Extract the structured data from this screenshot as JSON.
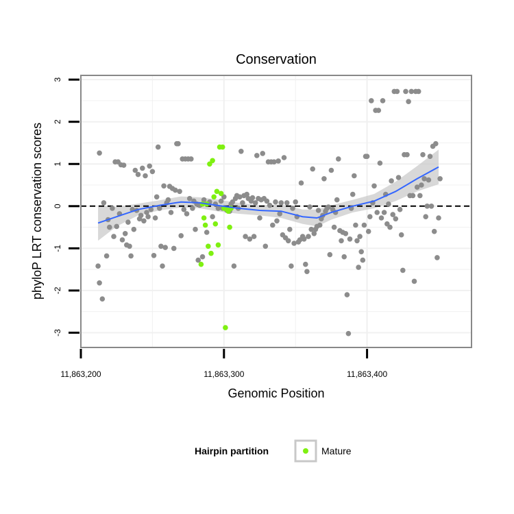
{
  "chart_data": {
    "type": "scatter",
    "title": "Conservation",
    "xlabel": "Genomic Position",
    "ylabel": "phyloP LRT conservation scores",
    "xlim": [
      11863200,
      11863473
    ],
    "ylim": [
      -3.35,
      3.1
    ],
    "x_ticks": [
      11863200,
      11863300,
      11863400
    ],
    "x_tick_labels": [
      "11,863,200",
      "11,863,300",
      "11,863,400"
    ],
    "y_ticks": [
      -3,
      -2,
      -1,
      0,
      1,
      2,
      3
    ],
    "y_tick_labels": [
      "-3",
      "-2",
      "-1",
      "0",
      "1",
      "2",
      "3"
    ],
    "grid": true,
    "reference_line": {
      "y": 0,
      "style": "dashed",
      "color": "#000000"
    },
    "legend": {
      "title": "Hairpin partition",
      "position": "bottom",
      "entries": [
        {
          "label": "Mature",
          "color": "#7ff011"
        }
      ]
    },
    "colors": {
      "other": "#8c8c8c",
      "mature": "#7ff011",
      "smooth": "#3366ff",
      "band": "#c8c8c8",
      "panel_border": "#888888",
      "grid": "#f0f0f0"
    },
    "series": [
      {
        "name": "Other",
        "points": [
          [
            11863212,
            -1.42
          ],
          [
            11863213,
            -1.82
          ],
          [
            11863213,
            1.26
          ],
          [
            11863215,
            -2.2
          ],
          [
            11863216,
            0.08
          ],
          [
            11863218,
            -1.18
          ],
          [
            11863219,
            -0.32
          ],
          [
            11863220,
            -0.5
          ],
          [
            11863222,
            -0.05
          ],
          [
            11863223,
            -0.72
          ],
          [
            11863224,
            1.05
          ],
          [
            11863225,
            -0.48
          ],
          [
            11863226,
            1.05
          ],
          [
            11863227,
            -0.18
          ],
          [
            11863228,
            0.98
          ],
          [
            11863229,
            -0.8
          ],
          [
            11863230,
            0.97
          ],
          [
            11863231,
            -0.65
          ],
          [
            11863232,
            -0.92
          ],
          [
            11863233,
            -0.38
          ],
          [
            11863234,
            -0.95
          ],
          [
            11863235,
            -1.18
          ],
          [
            11863236,
            -0.08
          ],
          [
            11863237,
            -0.55
          ],
          [
            11863238,
            0.85
          ],
          [
            11863239,
            -0.1
          ],
          [
            11863240,
            0.75
          ],
          [
            11863241,
            -0.3
          ],
          [
            11863242,
            -0.22
          ],
          [
            11863243,
            0.9
          ],
          [
            11863244,
            -0.35
          ],
          [
            11863245,
            0.72
          ],
          [
            11863246,
            -0.15
          ],
          [
            11863247,
            -0.25
          ],
          [
            11863248,
            0.95
          ],
          [
            11863249,
            -0.08
          ],
          [
            11863250,
            0.82
          ],
          [
            11863251,
            -1.17
          ],
          [
            11863252,
            -0.28
          ],
          [
            11863253,
            0.22
          ],
          [
            11863254,
            1.4
          ],
          [
            11863255,
            -0.05
          ],
          [
            11863256,
            -0.95
          ],
          [
            11863257,
            -1.42
          ],
          [
            11863258,
            0.48
          ],
          [
            11863259,
            -0.98
          ],
          [
            11863260,
            0.08
          ],
          [
            11863261,
            0.15
          ],
          [
            11863262,
            0.47
          ],
          [
            11863263,
            -0.15
          ],
          [
            11863264,
            0.42
          ],
          [
            11863265,
            -1.0
          ],
          [
            11863266,
            0.38
          ],
          [
            11863267,
            1.48
          ],
          [
            11863268,
            1.48
          ],
          [
            11863269,
            0.35
          ],
          [
            11863270,
            -0.7
          ],
          [
            11863271,
            1.12
          ],
          [
            11863272,
            -0.08
          ],
          [
            11863273,
            1.12
          ],
          [
            11863274,
            -0.18
          ],
          [
            11863275,
            1.12
          ],
          [
            11863276,
            0.18
          ],
          [
            11863277,
            1.12
          ],
          [
            11863278,
            -0.05
          ],
          [
            11863279,
            0.12
          ],
          [
            11863280,
            -0.55
          ],
          [
            11863281,
            0.05
          ],
          [
            11863282,
            -1.28
          ],
          [
            11863283,
            0.02
          ],
          [
            11863285,
            -1.2
          ],
          [
            11863286,
            0.15
          ],
          [
            11863288,
            -0.62
          ],
          [
            11863290,
            0.1
          ],
          [
            11863292,
            -0.25
          ],
          [
            11863294,
            0.05
          ],
          [
            11863296,
            -0.05
          ],
          [
            11863298,
            0.12
          ],
          [
            11863299,
            -0.05
          ],
          [
            11863300,
            0.22
          ],
          [
            11863302,
            -0.1
          ],
          [
            11863304,
            -0.12
          ],
          [
            11863305,
            0.05
          ],
          [
            11863306,
            0.1
          ],
          [
            11863307,
            -1.42
          ],
          [
            11863308,
            0.18
          ],
          [
            11863309,
            0.25
          ],
          [
            11863310,
            -0.05
          ],
          [
            11863311,
            0.22
          ],
          [
            11863312,
            1.3
          ],
          [
            11863313,
            0.08
          ],
          [
            11863314,
            0.25
          ],
          [
            11863315,
            -0.72
          ],
          [
            11863316,
            0.28
          ],
          [
            11863317,
            0.18
          ],
          [
            11863318,
            -0.78
          ],
          [
            11863319,
            0.12
          ],
          [
            11863320,
            0.2
          ],
          [
            11863321,
            -0.72
          ],
          [
            11863322,
            0.08
          ],
          [
            11863323,
            1.2
          ],
          [
            11863324,
            0.18
          ],
          [
            11863325,
            -0.28
          ],
          [
            11863326,
            0.15
          ],
          [
            11863327,
            1.25
          ],
          [
            11863328,
            0.18
          ],
          [
            11863329,
            -0.95
          ],
          [
            11863330,
            0.12
          ],
          [
            11863331,
            1.05
          ],
          [
            11863332,
            0.02
          ],
          [
            11863333,
            1.05
          ],
          [
            11863334,
            -0.45
          ],
          [
            11863335,
            1.05
          ],
          [
            11863336,
            0.1
          ],
          [
            11863337,
            -0.35
          ],
          [
            11863338,
            1.07
          ],
          [
            11863339,
            -0.18
          ],
          [
            11863340,
            0.08
          ],
          [
            11863341,
            -0.68
          ],
          [
            11863342,
            1.15
          ],
          [
            11863343,
            -0.75
          ],
          [
            11863344,
            0.08
          ],
          [
            11863345,
            -0.82
          ],
          [
            11863346,
            -0.55
          ],
          [
            11863347,
            -1.42
          ],
          [
            11863348,
            -0.05
          ],
          [
            11863349,
            -0.88
          ],
          [
            11863350,
            0.1
          ],
          [
            11863351,
            -0.25
          ],
          [
            11863352,
            -0.85
          ],
          [
            11863353,
            -0.8
          ],
          [
            11863354,
            0.55
          ],
          [
            11863355,
            -0.72
          ],
          [
            11863356,
            -0.78
          ],
          [
            11863357,
            -1.38
          ],
          [
            11863358,
            -1.55
          ],
          [
            11863359,
            -0.72
          ],
          [
            11863360,
            -0.02
          ],
          [
            11863361,
            -0.55
          ],
          [
            11863362,
            0.88
          ],
          [
            11863363,
            -0.65
          ],
          [
            11863364,
            -0.55
          ],
          [
            11863365,
            -0.48
          ],
          [
            11863366,
            -0.1
          ],
          [
            11863367,
            -0.45
          ],
          [
            11863368,
            -0.3
          ],
          [
            11863369,
            -0.22
          ],
          [
            11863370,
            0.65
          ],
          [
            11863371,
            -0.12
          ],
          [
            11863372,
            -0.05
          ],
          [
            11863373,
            -0.02
          ],
          [
            11863374,
            -1.15
          ],
          [
            11863375,
            0.85
          ],
          [
            11863376,
            -0.08
          ],
          [
            11863377,
            -0.5
          ],
          [
            11863378,
            -0.15
          ],
          [
            11863379,
            0.15
          ],
          [
            11863380,
            1.12
          ],
          [
            11863381,
            -0.58
          ],
          [
            11863382,
            -0.82
          ],
          [
            11863383,
            -0.62
          ],
          [
            11863384,
            -1.2
          ],
          [
            11863385,
            -0.65
          ],
          [
            11863386,
            -2.1
          ],
          [
            11863387,
            -3.02
          ],
          [
            11863388,
            -0.78
          ],
          [
            11863389,
            -0.05
          ],
          [
            11863390,
            0.28
          ],
          [
            11863391,
            0.72
          ],
          [
            11863392,
            -0.45
          ],
          [
            11863393,
            -0.82
          ],
          [
            11863394,
            -1.45
          ],
          [
            11863395,
            -0.72
          ],
          [
            11863396,
            -1.08
          ],
          [
            11863397,
            -1.28
          ],
          [
            11863398,
            -0.45
          ],
          [
            11863399,
            1.18
          ],
          [
            11863400,
            1.18
          ],
          [
            11863401,
            -0.6
          ],
          [
            11863402,
            -0.25
          ],
          [
            11863403,
            2.5
          ],
          [
            11863404,
            0.08
          ],
          [
            11863405,
            0.48
          ],
          [
            11863406,
            2.27
          ],
          [
            11863407,
            -0.15
          ],
          [
            11863408,
            2.27
          ],
          [
            11863409,
            1.02
          ],
          [
            11863410,
            -0.28
          ],
          [
            11863411,
            2.5
          ],
          [
            11863412,
            -0.15
          ],
          [
            11863413,
            0.28
          ],
          [
            11863414,
            -0.42
          ],
          [
            11863415,
            0.05
          ],
          [
            11863416,
            -0.5
          ],
          [
            11863417,
            0.6
          ],
          [
            11863418,
            -0.2
          ],
          [
            11863419,
            2.72
          ],
          [
            11863420,
            -0.3
          ],
          [
            11863421,
            2.72
          ],
          [
            11863422,
            0.68
          ],
          [
            11863423,
            -0.08
          ],
          [
            11863424,
            -0.68
          ],
          [
            11863425,
            -1.52
          ],
          [
            11863426,
            1.22
          ],
          [
            11863427,
            2.72
          ],
          [
            11863428,
            1.22
          ],
          [
            11863429,
            2.48
          ],
          [
            11863430,
            0.25
          ],
          [
            11863431,
            2.72
          ],
          [
            11863432,
            0.25
          ],
          [
            11863433,
            -1.78
          ],
          [
            11863434,
            2.72
          ],
          [
            11863435,
            0.45
          ],
          [
            11863436,
            2.72
          ],
          [
            11863437,
            0.25
          ],
          [
            11863438,
            0.5
          ],
          [
            11863439,
            1.22
          ],
          [
            11863440,
            0.65
          ],
          [
            11863441,
            -0.25
          ],
          [
            11863442,
            0.0
          ],
          [
            11863443,
            0.62
          ],
          [
            11863444,
            1.18
          ],
          [
            11863445,
            0.0
          ],
          [
            11863446,
            1.42
          ],
          [
            11863447,
            -0.6
          ],
          [
            11863448,
            1.48
          ],
          [
            11863449,
            -1.22
          ],
          [
            11863450,
            -0.28
          ],
          [
            11863451,
            0.65
          ]
        ]
      },
      {
        "name": "Mature",
        "points": [
          [
            11863284,
            -1.38
          ],
          [
            11863285,
            0.05
          ],
          [
            11863286,
            -0.28
          ],
          [
            11863287,
            -0.45
          ],
          [
            11863288,
            0.05
          ],
          [
            11863289,
            -0.95
          ],
          [
            11863290,
            1.0
          ],
          [
            11863291,
            -1.12
          ],
          [
            11863292,
            1.08
          ],
          [
            11863293,
            0.22
          ],
          [
            11863294,
            -0.42
          ],
          [
            11863295,
            0.35
          ],
          [
            11863296,
            -0.92
          ],
          [
            11863297,
            1.4
          ],
          [
            11863298,
            0.3
          ],
          [
            11863299,
            1.4
          ],
          [
            11863300,
            -0.05
          ],
          [
            11863301,
            -2.88
          ],
          [
            11863302,
            -0.08
          ],
          [
            11863303,
            -0.12
          ],
          [
            11863304,
            -0.5
          ],
          [
            11863305,
            -0.05
          ]
        ]
      }
    ],
    "smooth_line": {
      "x": [
        11863212,
        11863225,
        11863240,
        11863255,
        11863270,
        11863283,
        11863295,
        11863310,
        11863325,
        11863340,
        11863355,
        11863365,
        11863375,
        11863390,
        11863405,
        11863420,
        11863435,
        11863450
      ],
      "y": [
        -0.4,
        -0.25,
        -0.08,
        0.02,
        0.1,
        0.08,
        0.02,
        -0.05,
        -0.1,
        -0.12,
        -0.25,
        -0.28,
        -0.15,
        0.0,
        0.12,
        0.35,
        0.65,
        0.93
      ]
    },
    "confidence_band": {
      "x": [
        11863212,
        11863225,
        11863240,
        11863255,
        11863270,
        11863283,
        11863295,
        11863310,
        11863325,
        11863340,
        11863355,
        11863365,
        11863375,
        11863390,
        11863405,
        11863420,
        11863435,
        11863450
      ],
      "lower": [
        -0.82,
        -0.48,
        -0.22,
        -0.1,
        -0.03,
        -0.05,
        -0.12,
        -0.18,
        -0.22,
        -0.28,
        -0.42,
        -0.48,
        -0.32,
        -0.15,
        -0.05,
        0.12,
        0.35,
        0.52
      ],
      "upper": [
        0.02,
        -0.02,
        0.06,
        0.14,
        0.23,
        0.21,
        0.16,
        0.08,
        0.02,
        0.04,
        -0.08,
        -0.08,
        0.02,
        0.15,
        0.29,
        0.58,
        0.95,
        1.34
      ]
    }
  }
}
